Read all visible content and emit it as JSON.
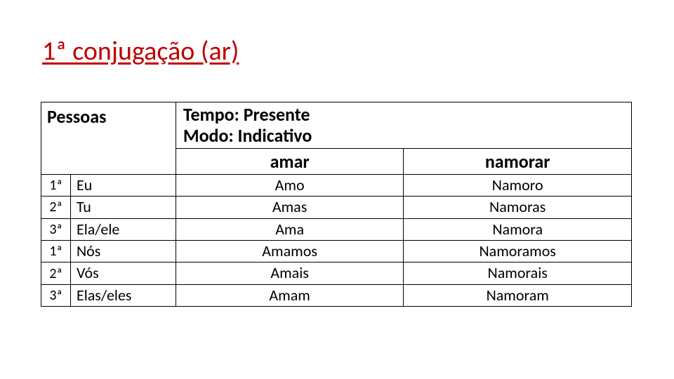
{
  "title": "1ª conjugação (ar)",
  "header": {
    "pessoas": "Pessoas",
    "tempo_line1": "Tempo: Presente",
    "tempo_line2": "Modo: Indicativo",
    "verb1": "amar",
    "verb2": "namorar"
  },
  "rows": [
    {
      "num": "1ª",
      "pron": "Eu",
      "v1": "Amo",
      "v2": "Namoro"
    },
    {
      "num": "2ª",
      "pron": "Tu",
      "v1": "Amas",
      "v2": "Namoras"
    },
    {
      "num": "3ª",
      "pron": "Ela/ele",
      "v1": "Ama",
      "v2": "Namora"
    },
    {
      "num": "1ª",
      "pron": "Nós",
      "v1": "Amamos",
      "v2": "Namoramos"
    },
    {
      "num": "2ª",
      "pron": "Vós",
      "v1": "Amais",
      "v2": "Namorais"
    },
    {
      "num": "3ª",
      "pron": "Elas/eles",
      "v1": "Amam",
      "v2": "Namoram"
    }
  ],
  "colors": {
    "title": "#c00000",
    "border": "#000000",
    "text": "#000000",
    "background": "#ffffff"
  }
}
